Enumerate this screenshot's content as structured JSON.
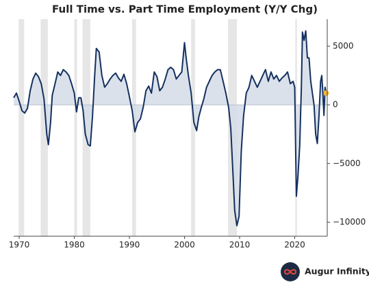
{
  "chart_data": {
    "type": "line",
    "title": "Full Time vs. Part Time Employment (Y/Y Chg)",
    "logo_text": "Augur Infinity",
    "xlim": [
      1969.0,
      2025.9
    ],
    "xticks": [
      1970,
      1980,
      1990,
      2000,
      2010,
      2020
    ],
    "ylim": [
      -11200,
      7300
    ],
    "yticks": [
      5000,
      0,
      {
        "value": -5000,
        "label": "−5000"
      },
      {
        "value": -10000,
        "label": "−10000"
      }
    ],
    "recessions": [
      [
        1969.9,
        1970.9
      ],
      [
        1973.9,
        1975.2
      ],
      [
        1980.0,
        1980.5
      ],
      [
        1981.5,
        1982.9
      ],
      [
        1990.5,
        1991.2
      ],
      [
        2001.2,
        2001.9
      ],
      [
        2007.9,
        2009.5
      ],
      [
        2020.1,
        2020.4
      ]
    ],
    "recession_color": "#e6e6e6",
    "area_color": "#d5dce8",
    "end_marker_color": "#f2b632",
    "x": [
      1969.0,
      1969.5,
      1970.0,
      1970.5,
      1971.0,
      1971.5,
      1972.0,
      1972.5,
      1973.0,
      1973.5,
      1974.0,
      1974.5,
      1975.0,
      1975.3,
      1975.7,
      1976.0,
      1976.5,
      1977.0,
      1977.5,
      1978.0,
      1978.5,
      1979.0,
      1979.5,
      1980.0,
      1980.4,
      1980.8,
      1981.2,
      1981.6,
      1982.0,
      1982.5,
      1982.9,
      1983.3,
      1983.7,
      1984.0,
      1984.5,
      1985.0,
      1985.5,
      1986.0,
      1986.5,
      1987.0,
      1987.5,
      1988.0,
      1988.5,
      1989.0,
      1989.5,
      1990.0,
      1990.5,
      1991.0,
      1991.5,
      1992.0,
      1992.5,
      1993.0,
      1993.5,
      1994.0,
      1994.5,
      1995.0,
      1995.5,
      1996.0,
      1996.5,
      1997.0,
      1997.5,
      1998.0,
      1998.5,
      1999.0,
      1999.5,
      2000.0,
      2000.3,
      2000.7,
      2001.2,
      2001.7,
      2002.2,
      2002.6,
      2003.0,
      2003.5,
      2004.0,
      2004.5,
      2005.0,
      2005.5,
      2006.0,
      2006.5,
      2007.0,
      2007.5,
      2008.0,
      2008.4,
      2008.8,
      2009.1,
      2009.5,
      2009.9,
      2010.3,
      2010.7,
      2011.2,
      2011.7,
      2012.2,
      2012.7,
      2013.2,
      2013.7,
      2014.2,
      2014.7,
      2015.2,
      2015.7,
      2016.2,
      2016.7,
      2017.2,
      2017.7,
      2018.2,
      2018.7,
      2019.2,
      2019.7,
      2020.0,
      2020.3,
      2020.6,
      2020.9,
      2021.2,
      2021.4,
      2021.7,
      2022.0,
      2022.3,
      2022.6,
      2022.9,
      2023.2,
      2023.5,
      2023.8,
      2024.1,
      2024.4,
      2024.7,
      2024.9,
      2025.1,
      2025.3,
      2025.5,
      2025.7
    ],
    "series": [
      {
        "name": "Full Time vs. Part Time",
        "color": "#14305e",
        "values": [
          600,
          1000,
          300,
          -500,
          -700,
          -300,
          1200,
          2200,
          2700,
          2400,
          1800,
          500,
          -2500,
          -3400,
          -1500,
          800,
          1800,
          2800,
          2500,
          3000,
          2800,
          2500,
          1800,
          1000,
          -600,
          600,
          600,
          -500,
          -2500,
          -3400,
          -3500,
          -1000,
          2500,
          4800,
          4500,
          2500,
          1500,
          1800,
          2200,
          2500,
          2700,
          2300,
          2000,
          2600,
          1800,
          700,
          -500,
          -2300,
          -1500,
          -1200,
          -200,
          1200,
          1600,
          1000,
          2800,
          2400,
          1200,
          1500,
          2200,
          3000,
          3200,
          3000,
          2200,
          2500,
          2800,
          5300,
          4000,
          2500,
          1000,
          -1500,
          -2200,
          -1000,
          -300,
          500,
          1500,
          2000,
          2500,
          2800,
          3000,
          3000,
          2000,
          1000,
          -200,
          -2000,
          -6000,
          -9000,
          -10300,
          -9500,
          -4000,
          -1000,
          1000,
          1500,
          2500,
          2000,
          1500,
          2000,
          2500,
          3000,
          2000,
          2800,
          2200,
          2500,
          2000,
          2300,
          2500,
          2800,
          1800,
          2000,
          1500,
          -7800,
          -6000,
          -3500,
          1500,
          6200,
          5500,
          6300,
          4000,
          4000,
          2000,
          1000,
          0,
          -2500,
          -3300,
          -1000,
          2000,
          2500,
          1000,
          -900,
          1500,
          1000
        ]
      }
    ]
  }
}
